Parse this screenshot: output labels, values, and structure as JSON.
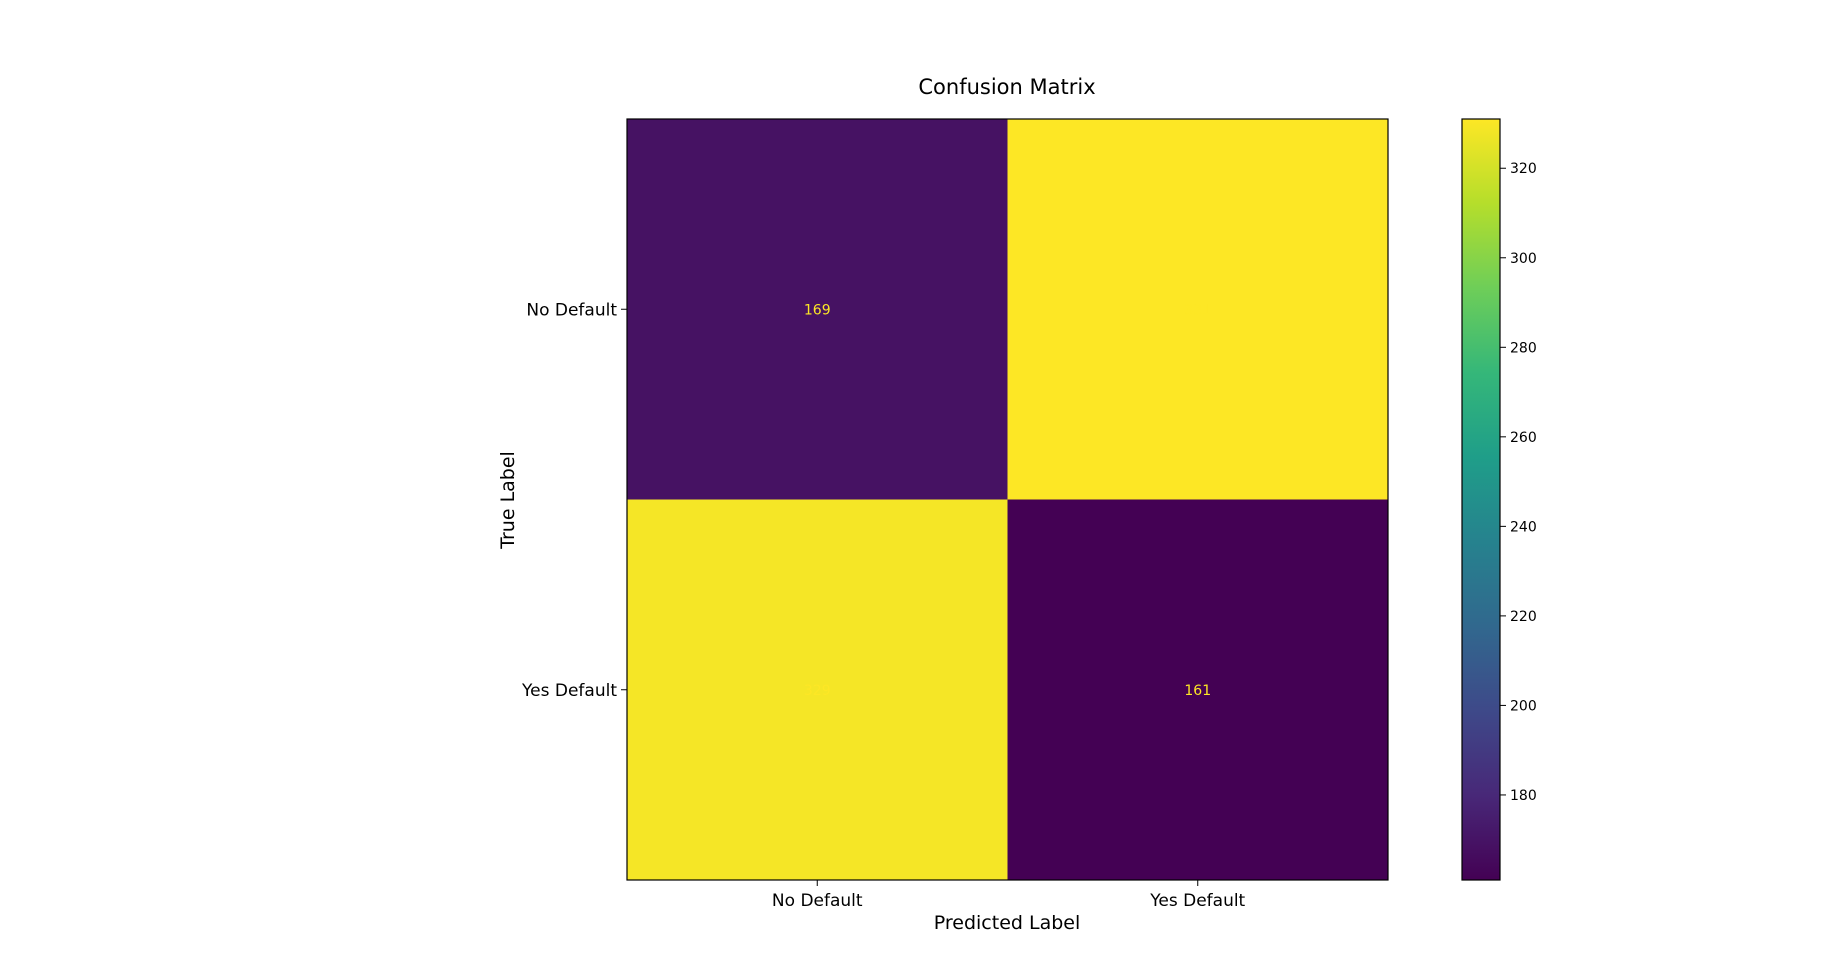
{
  "chart_data": {
    "type": "heatmap",
    "title": "Confusion Matrix",
    "xlabel": "Predicted Label",
    "ylabel": "True Label",
    "x_categories": [
      "No Default",
      "Yes Default"
    ],
    "y_categories": [
      "No Default",
      "Yes Default"
    ],
    "values": [
      [
        169,
        331
      ],
      [
        329,
        161
      ]
    ],
    "colormap": "viridis",
    "annotation_color": "#fde725",
    "colorbar": {
      "range": [
        161,
        331
      ],
      "ticks": [
        180,
        200,
        220,
        240,
        260,
        280,
        300,
        320
      ]
    },
    "grid": false,
    "legend": "colorbar-right"
  }
}
